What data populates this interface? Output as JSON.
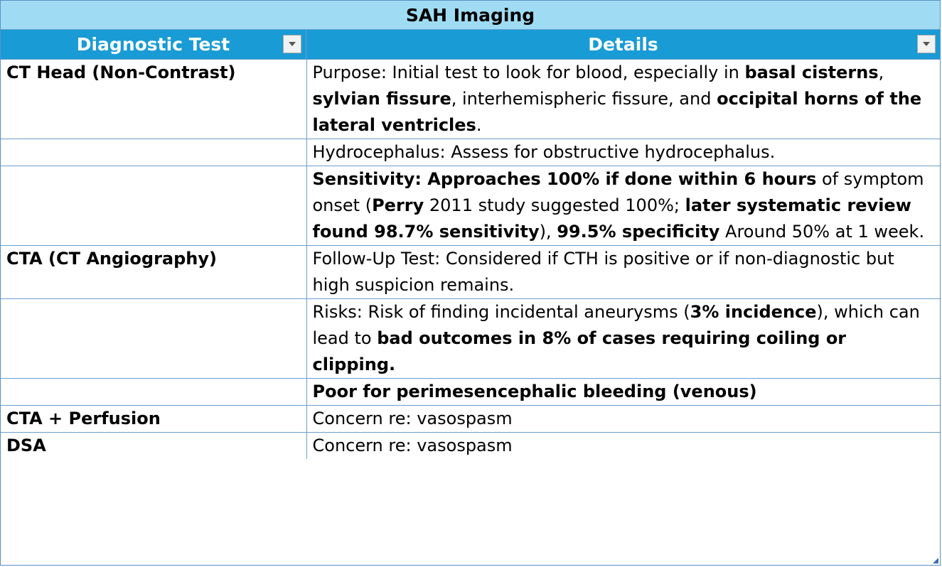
{
  "title": "SAH Imaging",
  "headers": {
    "col1": "Diagnostic Test",
    "col2": "Details"
  },
  "rows": [
    {
      "test": "CT Head (Non-Contrast)",
      "segments": [
        {
          "t": "Purpose: Initial test to look for blood, especially in ",
          "b": false
        },
        {
          "t": "basal cisterns",
          "b": true
        },
        {
          "t": ", ",
          "b": false
        },
        {
          "t": "sylvian fissure",
          "b": true
        },
        {
          "t": ", interhemispheric fissure, and ",
          "b": false
        },
        {
          "t": "occipital horns of the lateral ventricles",
          "b": true
        },
        {
          "t": ".",
          "b": false
        }
      ]
    },
    {
      "test": "",
      "segments": [
        {
          "t": "Hydrocephalus: Assess for obstructive hydrocephalus.",
          "b": false
        }
      ]
    },
    {
      "test": "",
      "segments": [
        {
          "t": "Sensitivity: Approaches 100% if done within 6 hours",
          "b": true
        },
        {
          "t": " of symptom onset (",
          "b": false
        },
        {
          "t": "Perry",
          "b": true
        },
        {
          "t": " 2011 study suggested 100%; ",
          "b": false
        },
        {
          "t": "later systematic review found 98.7% sensitivity",
          "b": true
        },
        {
          "t": "), ",
          "b": false
        },
        {
          "t": "99.5% specificity",
          "b": true
        },
        {
          "t": " Around 50% at 1 week.",
          "b": false
        }
      ]
    },
    {
      "test": "CTA (CT Angiography)",
      "segments": [
        {
          "t": "Follow-Up Test: Considered if CTH is positive or if non-diagnostic but high suspicion remains.",
          "b": false
        }
      ]
    },
    {
      "test": "",
      "segments": [
        {
          "t": "Risks: Risk of finding incidental aneurysms (",
          "b": false
        },
        {
          "t": "3% incidence",
          "b": true
        },
        {
          "t": "), which can lead to ",
          "b": false
        },
        {
          "t": "bad outcomes in 8% of cases requiring coiling or clipping.",
          "b": true
        }
      ]
    },
    {
      "test": "",
      "segments": [
        {
          "t": "Poor for perimesencephalic bleeding (venous)",
          "b": true
        }
      ]
    },
    {
      "test": "CTA + Perfusion",
      "segments": [
        {
          "t": "Concern re: vasospasm",
          "b": false
        }
      ]
    },
    {
      "test": "DSA",
      "segments": [
        {
          "t": "Concern re: vasospasm",
          "b": false
        }
      ]
    }
  ],
  "colors": {
    "title_bg": "#9fdcf3",
    "header_bg": "#199bd5",
    "border": "#6a9fcf"
  },
  "icons": {
    "filter": "dropdown-arrow-icon",
    "resize": "resize-handle-icon"
  }
}
